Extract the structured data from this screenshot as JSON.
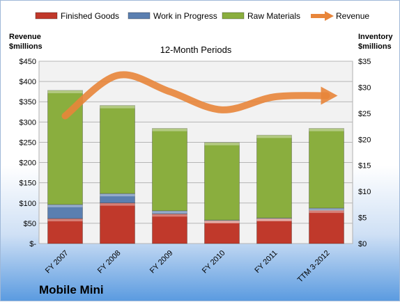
{
  "chart_data": {
    "type": "bar",
    "subtitle": "12-Month Periods",
    "company": "Mobile Mini",
    "categories": [
      "FY 2007",
      "FY 2008",
      "FY 2009",
      "FY 2010",
      "FY 2011",
      "TTM 3-2012"
    ],
    "left_axis": {
      "label_line1": "Revenue",
      "label_line2": "$millions",
      "ylim": [
        0,
        450
      ],
      "ticks": [
        0,
        50,
        100,
        150,
        200,
        250,
        300,
        350,
        400,
        450
      ],
      "tick_labels": [
        "$-",
        "$50",
        "$100",
        "$150",
        "$200",
        "$250",
        "$300",
        "$350",
        "$400",
        "$450"
      ]
    },
    "right_axis": {
      "label_line1": "Inventory",
      "label_line2": "$millions",
      "ylim": [
        0,
        35
      ],
      "ticks": [
        0,
        5,
        10,
        15,
        20,
        25,
        30,
        35
      ],
      "tick_labels": [
        "$0",
        "$5",
        "$10",
        "$15",
        "$20",
        "$25",
        "$30",
        "$35"
      ]
    },
    "stacked_series": [
      {
        "name": "Finished Goods",
        "color": "#c0392b",
        "values": [
          4.8,
          7.8,
          5.7,
          4.4,
          4.8,
          6.4
        ]
      },
      {
        "name": "Work in Progress",
        "color": "#5b7fb0",
        "values": [
          2.7,
          1.8,
          0.6,
          0.1,
          0.1,
          0.4
        ]
      },
      {
        "name": "Raw Materials",
        "color": "#8aae3e",
        "values": [
          21.9,
          16.9,
          15.8,
          14.9,
          15.9,
          15.3
        ]
      }
    ],
    "line_series": {
      "name": "Revenue",
      "color": "#e8853a",
      "axis": "left",
      "values": [
        315,
        415,
        375,
        330,
        362,
        365
      ]
    },
    "legend_position": "top",
    "grid": true
  }
}
